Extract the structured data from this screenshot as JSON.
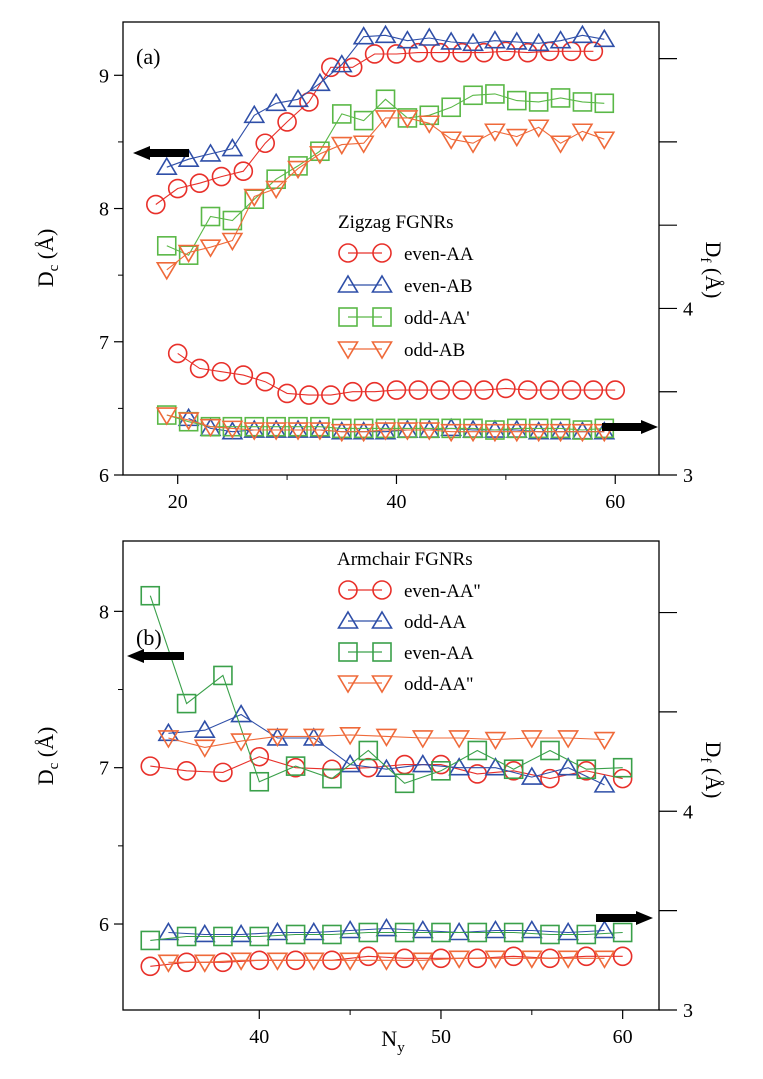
{
  "chart_data": [
    {
      "type": "scatter",
      "panel_label": "(a)",
      "legend_title": "Zigzag FGNRs",
      "xlabel": "",
      "ylabel_left": "D_c (Å)",
      "ylabel_right": "D_f (Å)",
      "xlim": [
        15,
        64
      ],
      "ylim_left": [
        6,
        9.4
      ],
      "ylim_right": [
        3,
        5.72
      ],
      "xticks": [
        20,
        40,
        60
      ],
      "yticks_left": [
        6,
        7,
        8,
        9
      ],
      "yticks_right": [
        3,
        4
      ],
      "arrows": [
        "left",
        "right"
      ],
      "series": [
        {
          "name": "even-AA",
          "marker": "circle",
          "color": "#e8302a",
          "axis": "left",
          "x": [
            18,
            20,
            22,
            24,
            26,
            28,
            30,
            32,
            34,
            36,
            38,
            40,
            42,
            44,
            46,
            48,
            50,
            52,
            54,
            56,
            58
          ],
          "y": [
            8.03,
            8.15,
            8.19,
            8.24,
            8.28,
            8.49,
            8.65,
            8.8,
            9.06,
            9.06,
            9.16,
            9.16,
            9.17,
            9.17,
            9.17,
            9.17,
            9.18,
            9.17,
            9.18,
            9.18,
            9.18
          ]
        },
        {
          "name": "even-AB",
          "marker": "triangle-up",
          "color": "#2f4fa8",
          "axis": "left",
          "x": [
            19,
            21,
            23,
            25,
            27,
            29,
            31,
            33,
            35,
            37,
            39,
            41,
            43,
            45,
            47,
            49,
            51,
            53,
            55,
            57,
            59
          ],
          "y": [
            8.31,
            8.37,
            8.41,
            8.45,
            8.7,
            8.79,
            8.82,
            8.94,
            9.08,
            9.29,
            9.3,
            9.26,
            9.28,
            9.25,
            9.24,
            9.26,
            9.25,
            9.24,
            9.26,
            9.3,
            9.27
          ]
        },
        {
          "name": "odd-AA'",
          "marker": "square",
          "color": "#5ab847",
          "axis": "left",
          "x": [
            19,
            21,
            23,
            25,
            27,
            29,
            31,
            33,
            35,
            37,
            39,
            41,
            43,
            45,
            47,
            49,
            51,
            53,
            55,
            57,
            59
          ],
          "y": [
            7.72,
            7.65,
            7.94,
            7.91,
            8.07,
            8.22,
            8.32,
            8.43,
            8.71,
            8.66,
            8.82,
            8.68,
            8.7,
            8.76,
            8.85,
            8.86,
            8.81,
            8.8,
            8.83,
            8.8,
            8.79
          ]
        },
        {
          "name": "odd-AB",
          "marker": "triangle-down",
          "color": "#ef6a3a",
          "axis": "left",
          "x": [
            19,
            21,
            23,
            25,
            27,
            29,
            31,
            33,
            35,
            37,
            39,
            41,
            43,
            45,
            47,
            49,
            51,
            53,
            55,
            57,
            59
          ],
          "y": [
            7.54,
            7.67,
            7.71,
            7.76,
            8.09,
            8.15,
            8.3,
            8.41,
            8.48,
            8.49,
            8.68,
            8.68,
            8.64,
            8.52,
            8.49,
            8.58,
            8.54,
            8.61,
            8.49,
            8.58,
            8.52
          ]
        },
        {
          "name": "even-AA",
          "marker": "circle",
          "color": "#e8302a",
          "axis": "right",
          "legend": false,
          "x": [
            20,
            22,
            24,
            26,
            28,
            30,
            32,
            34,
            36,
            38,
            40,
            42,
            44,
            46,
            48,
            50,
            52,
            54,
            56,
            58,
            60
          ],
          "y": [
            3.73,
            3.64,
            3.62,
            3.6,
            3.56,
            3.49,
            3.48,
            3.48,
            3.5,
            3.5,
            3.51,
            3.51,
            3.51,
            3.51,
            3.51,
            3.52,
            3.51,
            3.51,
            3.51,
            3.51,
            3.51
          ]
        },
        {
          "name": "even-AB",
          "marker": "triangle-up",
          "color": "#2f4fa8",
          "axis": "right",
          "legend": false,
          "x": [
            21,
            23,
            25,
            27,
            29,
            31,
            33,
            35,
            37,
            39,
            41,
            43,
            45,
            47,
            49,
            51,
            53,
            55,
            57,
            59
          ],
          "y": [
            3.34,
            3.28,
            3.26,
            3.27,
            3.27,
            3.27,
            3.27,
            3.26,
            3.26,
            3.26,
            3.27,
            3.27,
            3.28,
            3.27,
            3.27,
            3.27,
            3.26,
            3.26,
            3.26,
            3.26
          ]
        },
        {
          "name": "odd-AA'",
          "marker": "square",
          "color": "#5ab847",
          "axis": "right",
          "legend": false,
          "x": [
            19,
            21,
            23,
            25,
            27,
            29,
            31,
            33,
            35,
            37,
            39,
            41,
            43,
            45,
            47,
            49,
            51,
            53,
            55,
            57,
            59
          ],
          "y": [
            3.36,
            3.32,
            3.29,
            3.29,
            3.29,
            3.29,
            3.29,
            3.29,
            3.28,
            3.28,
            3.28,
            3.28,
            3.28,
            3.28,
            3.28,
            3.27,
            3.28,
            3.28,
            3.28,
            3.27,
            3.28
          ]
        },
        {
          "name": "odd-AB",
          "marker": "triangle-down",
          "color": "#ef6a3a",
          "axis": "right",
          "legend": false,
          "x": [
            19,
            21,
            23,
            25,
            27,
            29,
            31,
            33,
            35,
            37,
            39,
            41,
            43,
            45,
            47,
            49,
            51,
            53,
            55,
            57,
            59
          ],
          "y": [
            3.36,
            3.33,
            3.29,
            3.28,
            3.27,
            3.27,
            3.27,
            3.27,
            3.26,
            3.26,
            3.27,
            3.27,
            3.27,
            3.26,
            3.26,
            3.26,
            3.26,
            3.26,
            3.26,
            3.26,
            3.26
          ]
        }
      ]
    },
    {
      "type": "scatter",
      "panel_label": "(b)",
      "legend_title": "Armchair FGNRs",
      "xlabel": "N_y",
      "ylabel_left": "D_c (Å)",
      "ylabel_right": "D_f (Å)",
      "xlim": [
        32.5,
        62
      ],
      "ylim_left": [
        5.45,
        8.45
      ],
      "ylim_right": [
        3,
        5.36
      ],
      "xticks": [
        40,
        50,
        60
      ],
      "yticks_left": [
        6,
        7,
        8
      ],
      "yticks_right": [
        3,
        4
      ],
      "arrows": [
        "left",
        "right"
      ],
      "series": [
        {
          "name": "even-AA''",
          "marker": "circle",
          "color": "#e8302a",
          "axis": "left",
          "x": [
            34,
            36,
            38,
            40,
            42,
            44,
            46,
            48,
            50,
            52,
            54,
            56,
            58,
            60
          ],
          "y": [
            7.01,
            6.98,
            6.97,
            7.07,
            7.0,
            6.99,
            7.0,
            7.02,
            7.02,
            6.96,
            6.98,
            6.93,
            6.98,
            6.93
          ]
        },
        {
          "name": "odd-AA",
          "marker": "triangle-up",
          "color": "#2f4fa8",
          "axis": "left",
          "x": [
            35,
            37,
            39,
            41,
            43,
            45,
            47,
            49,
            51,
            53,
            55,
            57,
            59
          ],
          "y": [
            7.22,
            7.24,
            7.34,
            7.19,
            7.19,
            7.02,
            6.99,
            7.02,
            7.0,
            7.0,
            6.94,
            7.0,
            6.89
          ]
        },
        {
          "name": "even-AA",
          "marker": "square",
          "color": "#3aa04a",
          "axis": "left",
          "x": [
            34,
            36,
            38,
            40,
            42,
            44,
            46,
            48,
            50,
            52,
            54,
            56,
            58,
            60
          ],
          "y": [
            8.1,
            7.41,
            7.59,
            6.91,
            7.01,
            6.93,
            7.11,
            6.9,
            6.98,
            7.11,
            6.99,
            7.11,
            6.99,
            7.0
          ]
        },
        {
          "name": "odd-AA''",
          "marker": "triangle-down",
          "color": "#ef6a3a",
          "axis": "left",
          "x": [
            35,
            37,
            39,
            41,
            43,
            45,
            47,
            49,
            51,
            53,
            55,
            57,
            59
          ],
          "y": [
            7.19,
            7.13,
            7.17,
            7.2,
            7.2,
            7.21,
            7.2,
            7.19,
            7.19,
            7.18,
            7.19,
            7.19,
            7.18
          ]
        },
        {
          "name": "even-AA''",
          "marker": "circle",
          "color": "#e8302a",
          "axis": "right",
          "legend": false,
          "x": [
            34,
            36,
            38,
            40,
            42,
            44,
            46,
            48,
            50,
            52,
            54,
            56,
            58,
            60
          ],
          "y": [
            3.22,
            3.24,
            3.24,
            3.25,
            3.25,
            3.25,
            3.27,
            3.26,
            3.26,
            3.26,
            3.27,
            3.26,
            3.27,
            3.27
          ]
        },
        {
          "name": "odd-AA",
          "marker": "triangle-up",
          "color": "#2f4fa8",
          "axis": "right",
          "legend": false,
          "x": [
            35,
            37,
            39,
            41,
            43,
            45,
            47,
            49,
            51,
            53,
            55,
            57,
            59
          ],
          "y": [
            3.39,
            3.38,
            3.38,
            3.39,
            3.39,
            3.4,
            3.41,
            3.4,
            3.39,
            3.4,
            3.4,
            3.39,
            3.4
          ]
        },
        {
          "name": "even-AA",
          "marker": "square",
          "color": "#3aa04a",
          "axis": "right",
          "legend": false,
          "x": [
            34,
            36,
            38,
            40,
            42,
            44,
            46,
            48,
            50,
            52,
            54,
            56,
            58,
            60
          ],
          "y": [
            3.35,
            3.37,
            3.37,
            3.37,
            3.38,
            3.38,
            3.39,
            3.39,
            3.39,
            3.39,
            3.39,
            3.38,
            3.38,
            3.39
          ]
        },
        {
          "name": "odd-AA''",
          "marker": "triangle-down",
          "color": "#ef6a3a",
          "axis": "right",
          "legend": false,
          "x": [
            35,
            37,
            39,
            41,
            43,
            45,
            47,
            49,
            51,
            53,
            55,
            57,
            59
          ],
          "y": [
            3.24,
            3.24,
            3.25,
            3.25,
            3.25,
            3.25,
            3.25,
            3.25,
            3.26,
            3.26,
            3.26,
            3.26,
            3.26
          ]
        }
      ]
    }
  ]
}
